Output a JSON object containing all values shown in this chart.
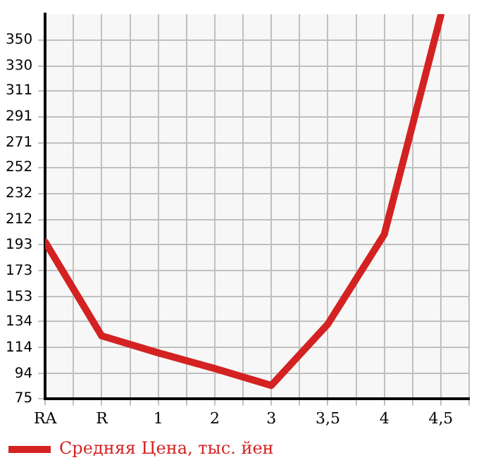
{
  "chart_data": {
    "type": "line",
    "categories": [
      "RA",
      "R",
      "1",
      "2",
      "3",
      "3,5",
      "4",
      "4,5"
    ],
    "series": [
      {
        "name": "Средняя Цена, тыс. йен",
        "color": "#d42222",
        "values": [
          195,
          123,
          110,
          98,
          85,
          132,
          201,
          369
        ]
      }
    ],
    "ylim": [
      75,
      370
    ],
    "yticks": [
      75,
      94,
      114,
      134,
      153,
      173,
      193,
      212,
      232,
      252,
      271,
      291,
      311,
      330,
      350
    ],
    "grid": true,
    "legend": "bottom",
    "marker": "none",
    "line_style": "solid"
  }
}
